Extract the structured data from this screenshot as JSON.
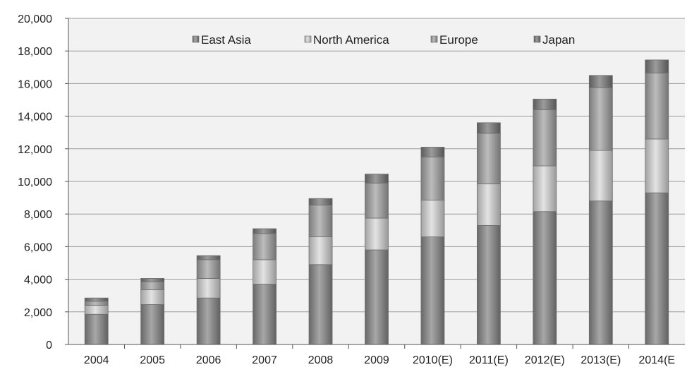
{
  "chart_data": {
    "type": "bar",
    "stacked": true,
    "categories": [
      "2004",
      "2005",
      "2006",
      "2007",
      "2008",
      "2009",
      "2010(E)",
      "2011(E)",
      "2012(E)",
      "2013(E)",
      "2014(E"
    ],
    "series": [
      {
        "name": "East Asia",
        "color": "#8a8a8a",
        "values": [
          1850,
          2450,
          2850,
          3700,
          4900,
          5800,
          6600,
          7300,
          8150,
          8800,
          9300
        ]
      },
      {
        "name": "North America",
        "color": "#d9d9d9",
        "values": [
          550,
          900,
          1200,
          1500,
          1700,
          1950,
          2250,
          2550,
          2800,
          3100,
          3300
        ]
      },
      {
        "name": "Europe",
        "color": "#a6a6a6",
        "values": [
          250,
          500,
          1150,
          1600,
          1950,
          2150,
          2650,
          3100,
          3450,
          3850,
          4050
        ]
      },
      {
        "name": "Japan",
        "color": "#7a7a7a",
        "values": [
          200,
          200,
          250,
          300,
          400,
          550,
          600,
          650,
          650,
          750,
          800
        ]
      }
    ],
    "ylim": [
      0,
      20000
    ],
    "yticks": [
      "0",
      "2,000",
      "4,000",
      "6,000",
      "8,000",
      "10,000",
      "12,000",
      "14,000",
      "16,000",
      "18,000",
      "20,000"
    ],
    "grid": true,
    "legend_position": "top",
    "background": "#f2f2f2"
  }
}
